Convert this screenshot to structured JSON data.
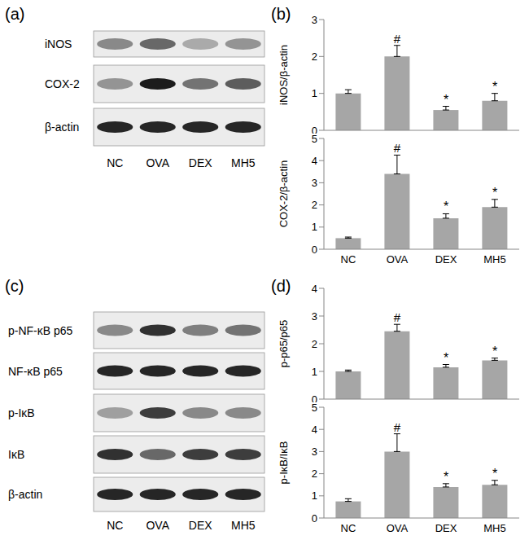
{
  "panel_labels": [
    "(a)",
    "(b)",
    "(c)",
    "(d)"
  ],
  "blots": [
    {
      "rows": [
        "iNOS",
        "COX-2",
        "β-actin"
      ],
      "lanes": [
        "NC",
        "OVA",
        "DEX",
        "MH5"
      ]
    },
    {
      "rows": [
        "p-NF-κB p65",
        "NF-κB p65",
        "p-IκB",
        "IκB",
        "β-actin"
      ],
      "lanes": [
        "NC",
        "OVA",
        "DEX",
        "MH5"
      ]
    }
  ],
  "chart_data": [
    {
      "type": "bar",
      "y_label": "iNOS/β-actin",
      "categories": [
        "NC",
        "OVA",
        "DEX",
        "MH5"
      ],
      "values": [
        1.0,
        2.0,
        0.55,
        0.8
      ],
      "errors": [
        0.1,
        0.3,
        0.1,
        0.2
      ],
      "annotations": [
        null,
        "#",
        "*",
        "*"
      ],
      "color": "#a6a6a6",
      "ylim": [
        0,
        3
      ],
      "yticks": [
        0,
        1,
        2,
        3
      ],
      "tick_labels": "y"
    },
    {
      "type": "bar",
      "y_label": "COX-2/β-actin",
      "categories": [
        "NC",
        "OVA",
        "DEX",
        "MH5"
      ],
      "values": [
        0.5,
        3.4,
        1.4,
        1.9
      ],
      "errors": [
        0.05,
        0.85,
        0.2,
        0.35
      ],
      "annotations": [
        null,
        "#",
        "*",
        "*"
      ],
      "color": "#a6a6a6",
      "ylim": [
        0,
        5
      ],
      "yticks": [
        0,
        1,
        2,
        3,
        4,
        5
      ]
    },
    {
      "type": "bar",
      "y_label": "p-p65/p65",
      "categories": [
        "NC",
        "OVA",
        "DEX",
        "MH5"
      ],
      "values": [
        1.0,
        2.45,
        1.15,
        1.4
      ],
      "errors": [
        0.05,
        0.25,
        0.1,
        0.08
      ],
      "annotations": [
        null,
        "#",
        "*",
        "*"
      ],
      "color": "#a6a6a6",
      "ylim": [
        0,
        4
      ],
      "yticks": [
        0,
        1,
        2,
        3,
        4
      ],
      "tick_labels": "y"
    },
    {
      "type": "bar",
      "y_label": "p-IκB/IκB",
      "categories": [
        "NC",
        "OVA",
        "DEX",
        "MH5"
      ],
      "values": [
        0.75,
        3.0,
        1.4,
        1.5
      ],
      "errors": [
        0.12,
        0.8,
        0.15,
        0.2
      ],
      "annotations": [
        null,
        "#",
        "*",
        "*"
      ],
      "color": "#a6a6a6",
      "ylim": [
        0,
        5
      ],
      "yticks": [
        0,
        1,
        2,
        3,
        4,
        5
      ]
    }
  ]
}
